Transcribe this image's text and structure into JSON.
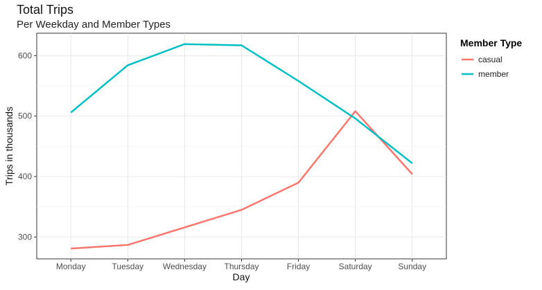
{
  "chart_data": {
    "type": "line",
    "title": "Total Trips",
    "subtitle": "Per Weekday and Member Types",
    "xlabel": "Day",
    "ylabel": "Trips in thousands",
    "categories": [
      "Monday",
      "Tuesday",
      "Wednesday",
      "Thursday",
      "Friday",
      "Saturday",
      "Sunday"
    ],
    "series": [
      {
        "name": "casual",
        "color": "#F8766D",
        "values": [
          281,
          287,
          316,
          345,
          390,
          508,
          404
        ]
      },
      {
        "name": "member",
        "color": "#00BFC4",
        "values": [
          506,
          584,
          619,
          617,
          558,
          496,
          422
        ]
      }
    ],
    "yticks": [
      300,
      400,
      500,
      600
    ],
    "ylim": [
      264,
      637
    ],
    "grid": true,
    "legend": {
      "title": "Member Type",
      "position": "right"
    }
  }
}
